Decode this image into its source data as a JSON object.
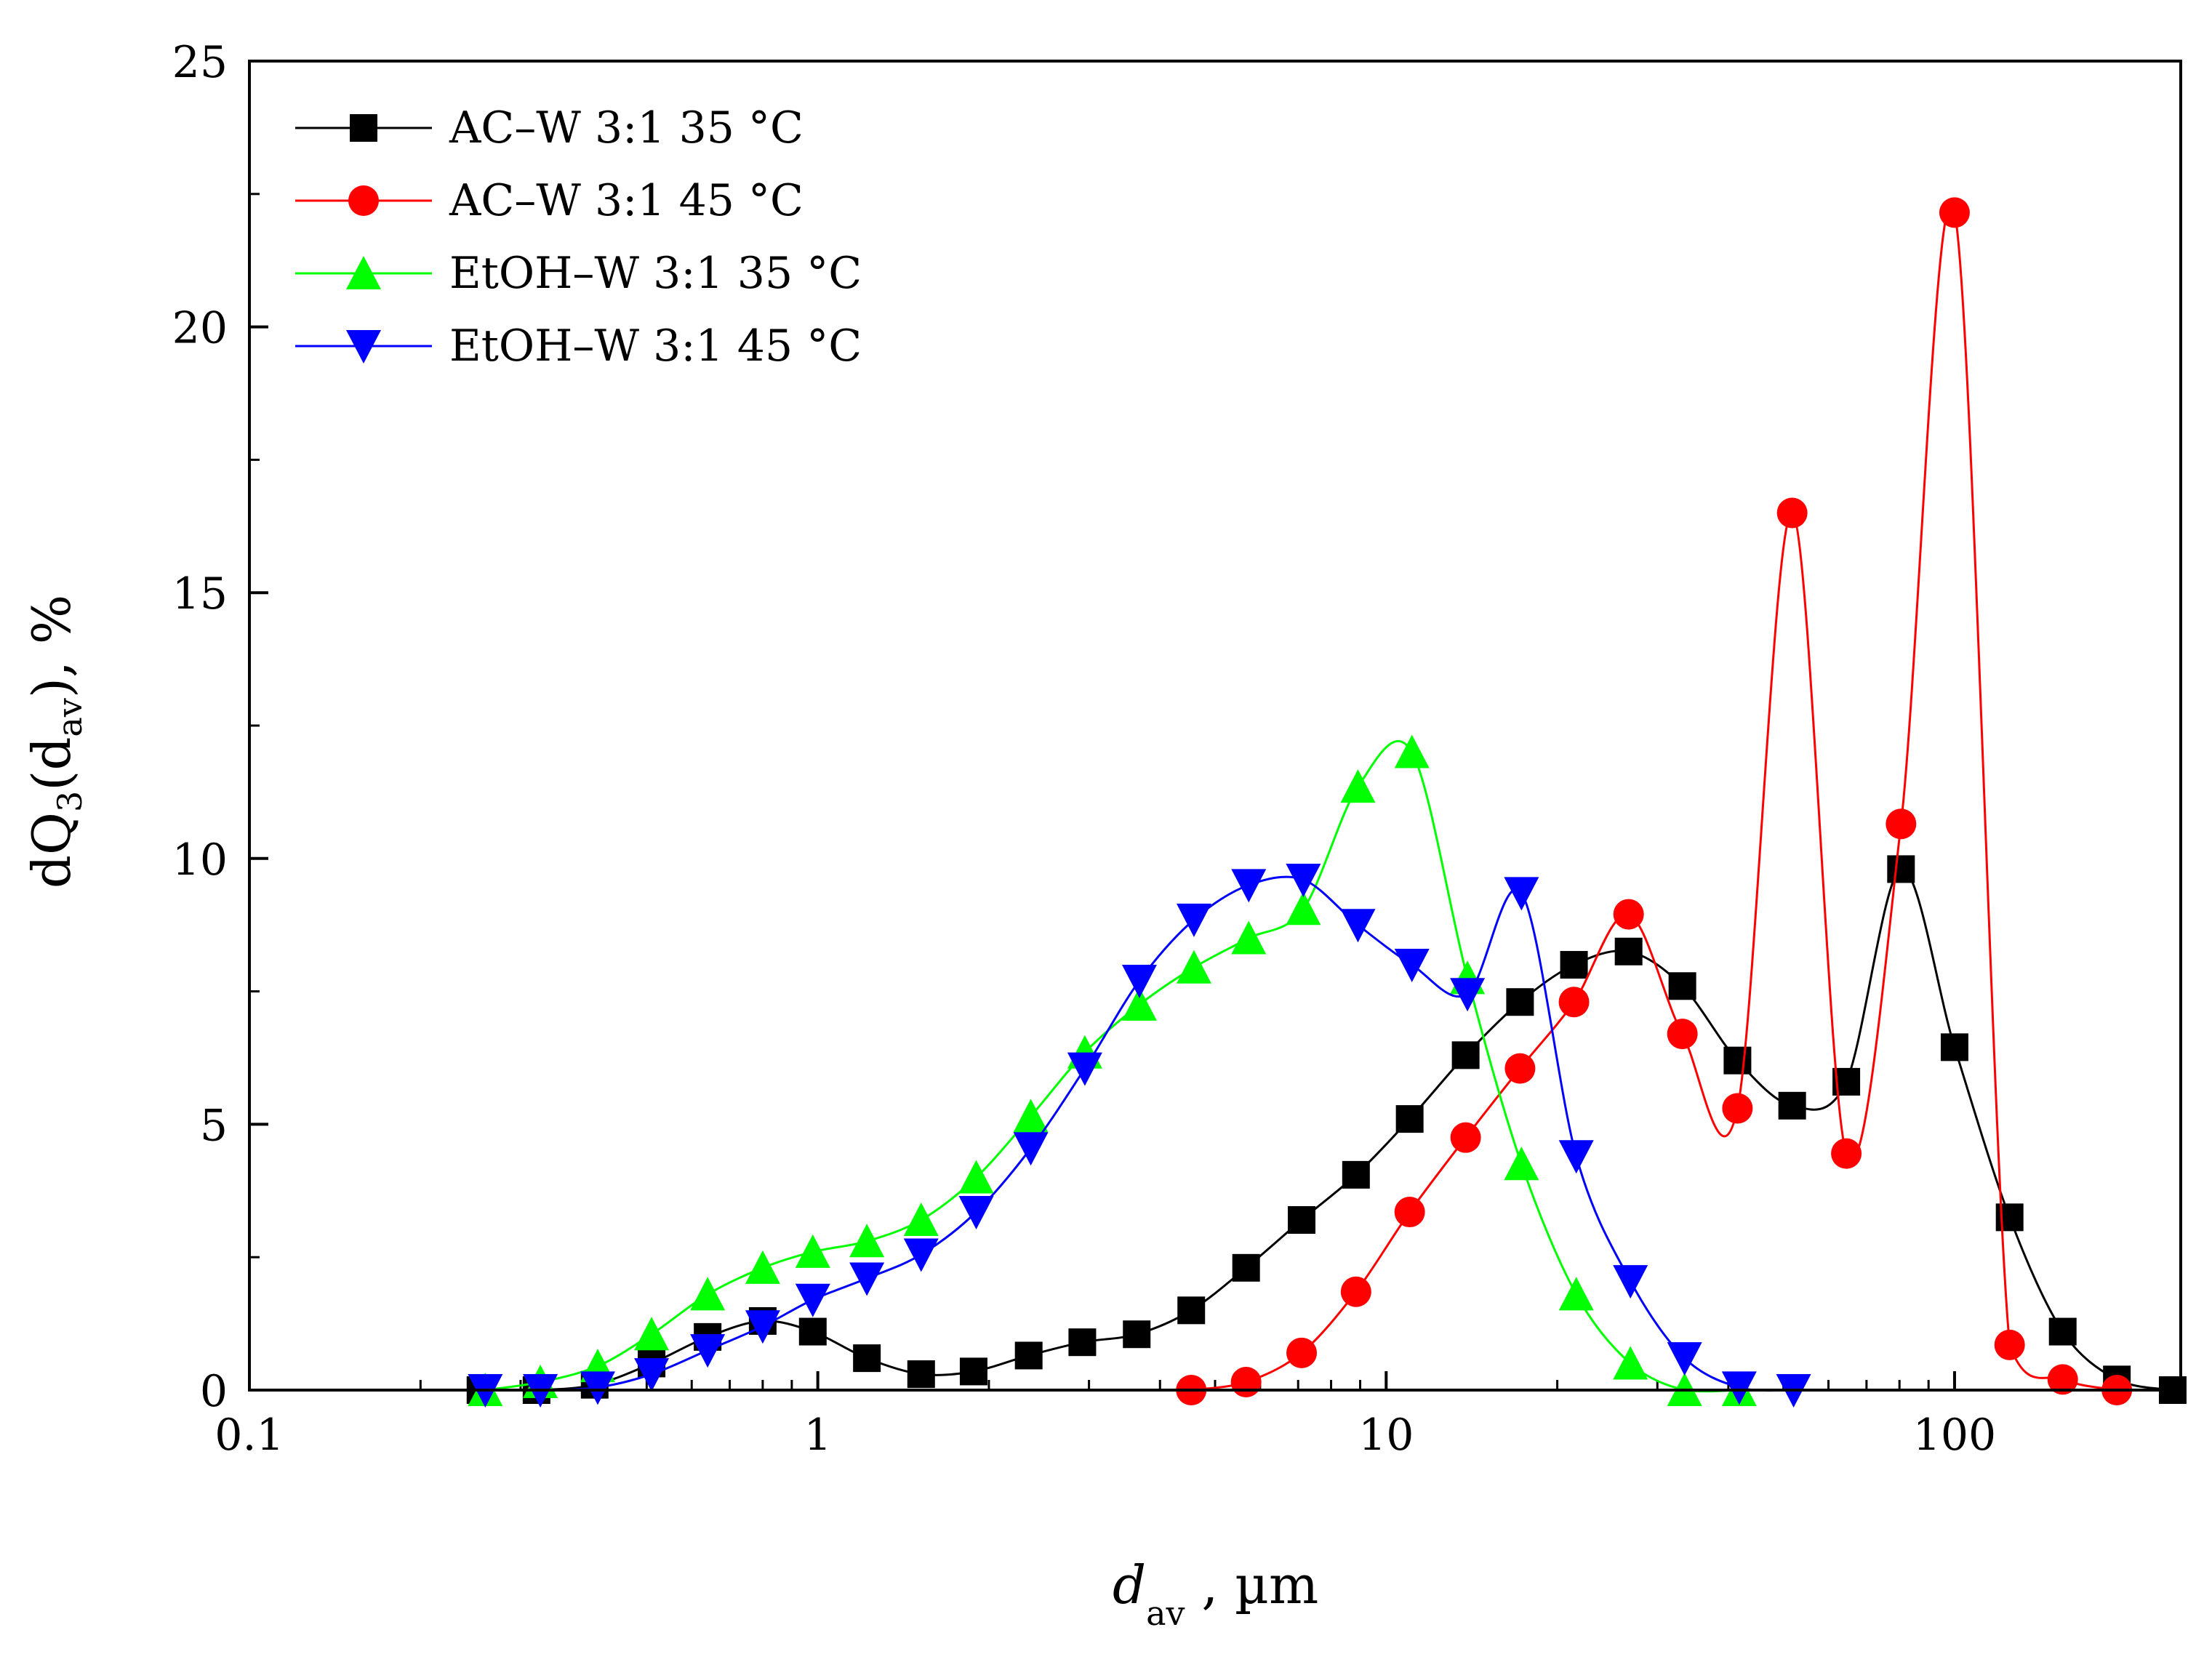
{
  "chart_data": {
    "type": "line",
    "x_scale": "log",
    "xlim": [
      0.1,
      250
    ],
    "ylim": [
      0,
      25
    ],
    "ylabel": {
      "prefix": "dQ",
      "sub1": "3",
      "mid": "(d",
      "sub2": "av",
      "suffix": "), %"
    },
    "xlabel": {
      "main": "d",
      "sub": "av",
      "suffix": " , µm"
    },
    "x_ticks": [
      {
        "value": 0.1,
        "label": "0.1"
      },
      {
        "value": 1,
        "label": "1"
      },
      {
        "value": 10,
        "label": "10"
      },
      {
        "value": 100,
        "label": "100"
      }
    ],
    "y_ticks": [
      {
        "value": 0,
        "label": "0"
      },
      {
        "value": 5,
        "label": "5"
      },
      {
        "value": 10,
        "label": "10"
      },
      {
        "value": 15,
        "label": "15"
      },
      {
        "value": 20,
        "label": "20"
      },
      {
        "value": 25,
        "label": "25"
      }
    ],
    "legend_position": "top-left",
    "series": [
      {
        "name": "AC–W 3:1 35 °C",
        "color": "#000000",
        "marker": "square",
        "points": [
          [
            0.255,
            0
          ],
          [
            0.32,
            0
          ],
          [
            0.405,
            0.1
          ],
          [
            0.51,
            0.5
          ],
          [
            0.64,
            1.0
          ],
          [
            0.8,
            1.3
          ],
          [
            0.98,
            1.1
          ],
          [
            1.22,
            0.6
          ],
          [
            1.52,
            0.3
          ],
          [
            1.88,
            0.35
          ],
          [
            2.35,
            0.65
          ],
          [
            2.92,
            0.9
          ],
          [
            3.64,
            1.05
          ],
          [
            4.54,
            1.5
          ],
          [
            5.67,
            2.3
          ],
          [
            7.1,
            3.2
          ],
          [
            8.85,
            4.05
          ],
          [
            11.0,
            5.1
          ],
          [
            13.8,
            6.3
          ],
          [
            17.2,
            7.3
          ],
          [
            21.4,
            8.0
          ],
          [
            26.7,
            8.25
          ],
          [
            33.2,
            7.6
          ],
          [
            41.5,
            6.2
          ],
          [
            51.8,
            5.35
          ],
          [
            64.5,
            5.8
          ],
          [
            80.5,
            9.8
          ],
          [
            100,
            6.45
          ],
          [
            125,
            3.25
          ],
          [
            155,
            1.1
          ],
          [
            193,
            0.2
          ],
          [
            242,
            0
          ]
        ]
      },
      {
        "name": "AC–W 3:1 45 °C",
        "color": "#ff0000",
        "marker": "circle",
        "points": [
          [
            4.54,
            0
          ],
          [
            5.67,
            0.15
          ],
          [
            7.1,
            0.7
          ],
          [
            8.85,
            1.85
          ],
          [
            11.0,
            3.35
          ],
          [
            13.8,
            4.75
          ],
          [
            17.2,
            6.05
          ],
          [
            21.4,
            7.3
          ],
          [
            26.7,
            8.95
          ],
          [
            33.2,
            6.7
          ],
          [
            41.5,
            5.3
          ],
          [
            51.8,
            16.5
          ],
          [
            64.5,
            4.45
          ],
          [
            80.5,
            10.65
          ],
          [
            100,
            22.15
          ],
          [
            125,
            0.85
          ],
          [
            155,
            0.2
          ],
          [
            193,
            0
          ]
        ]
      },
      {
        "name": "EtOH–W 3:1 35 °C",
        "color": "#00ff00",
        "marker": "triangle-up",
        "points": [
          [
            0.26,
            0
          ],
          [
            0.325,
            0.15
          ],
          [
            0.41,
            0.45
          ],
          [
            0.51,
            1.05
          ],
          [
            0.64,
            1.8
          ],
          [
            0.8,
            2.3
          ],
          [
            0.98,
            2.6
          ],
          [
            1.22,
            2.8
          ],
          [
            1.52,
            3.2
          ],
          [
            1.9,
            4.0
          ],
          [
            2.37,
            5.15
          ],
          [
            2.95,
            6.35
          ],
          [
            3.68,
            7.25
          ],
          [
            4.59,
            7.95
          ],
          [
            5.73,
            8.5
          ],
          [
            7.15,
            9.05
          ],
          [
            8.92,
            11.35
          ],
          [
            11.1,
            12.0
          ],
          [
            13.9,
            7.75
          ],
          [
            17.3,
            4.25
          ],
          [
            21.6,
            1.8
          ],
          [
            26.9,
            0.5
          ],
          [
            33.5,
            0
          ],
          [
            41.8,
            0
          ]
        ]
      },
      {
        "name": "EtOH–W 3:1 45 °C",
        "color": "#0000ff",
        "marker": "triangle-down",
        "points": [
          [
            0.26,
            0
          ],
          [
            0.325,
            0
          ],
          [
            0.41,
            0.05
          ],
          [
            0.51,
            0.3
          ],
          [
            0.64,
            0.75
          ],
          [
            0.8,
            1.2
          ],
          [
            0.98,
            1.7
          ],
          [
            1.22,
            2.1
          ],
          [
            1.52,
            2.55
          ],
          [
            1.9,
            3.35
          ],
          [
            2.37,
            4.55
          ],
          [
            2.95,
            6.05
          ],
          [
            3.68,
            7.7
          ],
          [
            4.59,
            8.85
          ],
          [
            5.73,
            9.5
          ],
          [
            7.15,
            9.6
          ],
          [
            8.92,
            8.75
          ],
          [
            11.1,
            8.0
          ],
          [
            13.9,
            7.45
          ],
          [
            17.3,
            9.35
          ],
          [
            21.6,
            4.4
          ],
          [
            26.9,
            2.05
          ],
          [
            33.5,
            0.6
          ],
          [
            41.8,
            0.05
          ],
          [
            52.1,
            0
          ]
        ]
      }
    ]
  }
}
